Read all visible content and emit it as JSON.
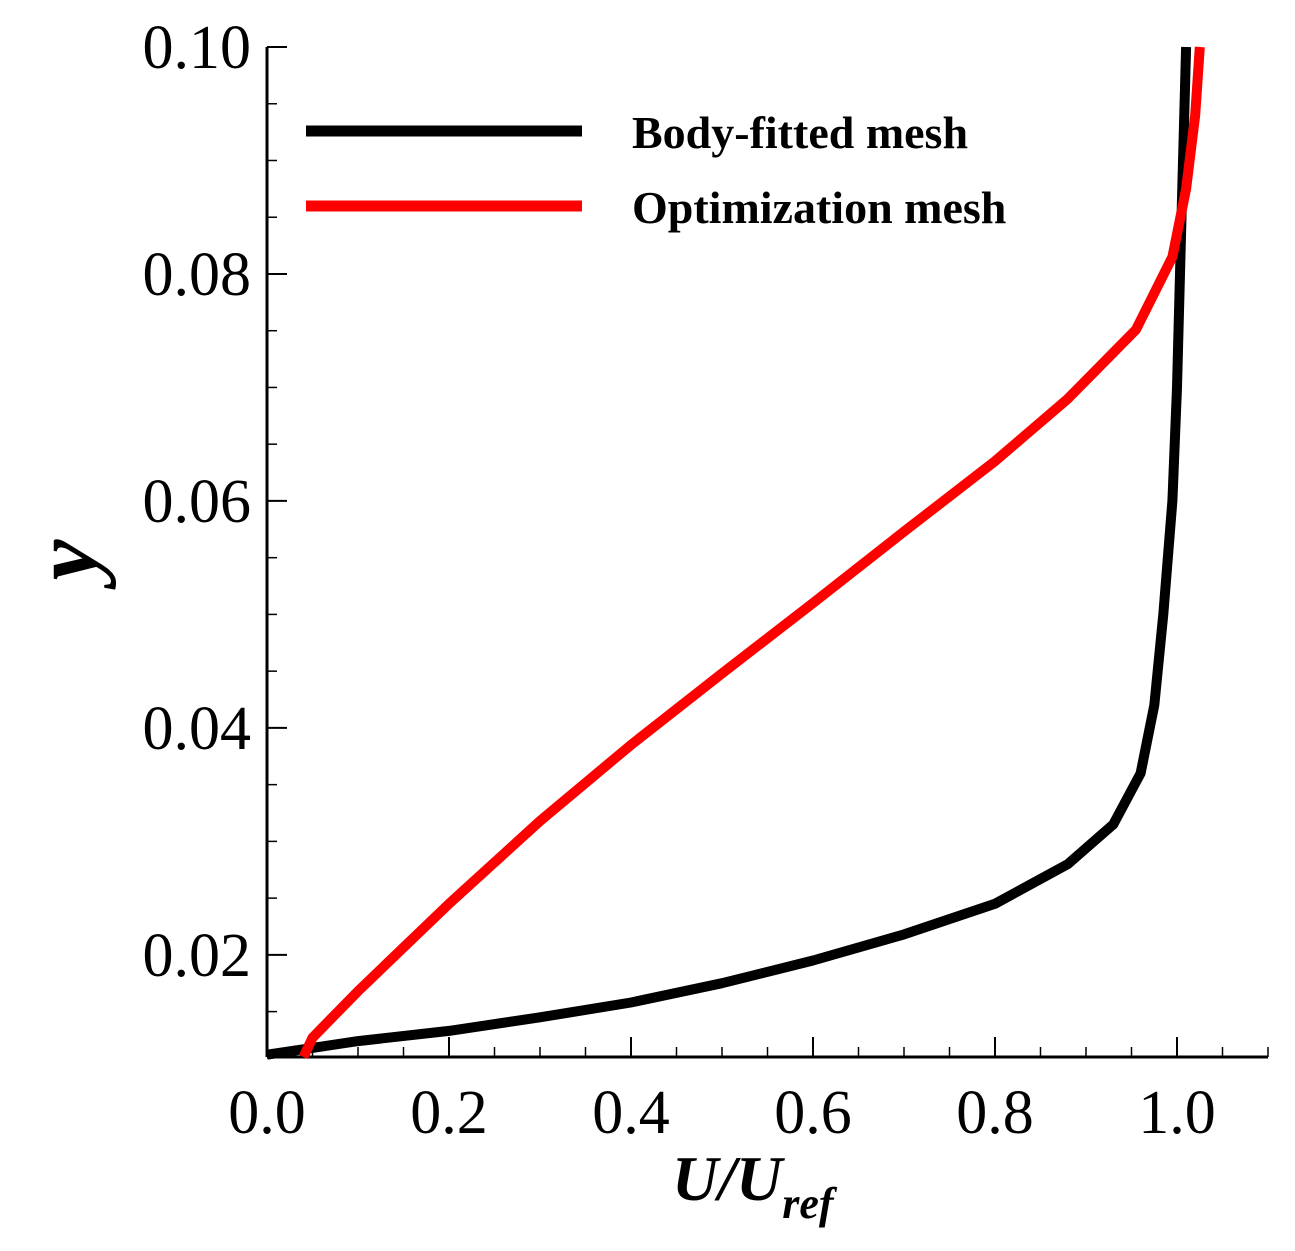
{
  "chart_data": {
    "type": "line",
    "xlabel": {
      "main": "U/U",
      "sub": "ref"
    },
    "ylabel": "y",
    "xlim": [
      0.0,
      1.1
    ],
    "ylim": [
      0.011,
      0.1
    ],
    "x_ticks": [
      0.0,
      0.2,
      0.4,
      0.6,
      0.8,
      1.0
    ],
    "x_tick_labels": [
      "0.0",
      "0.2",
      "0.4",
      "0.6",
      "0.8",
      "1.0"
    ],
    "x_minor_step": 0.05,
    "y_ticks": [
      0.02,
      0.04,
      0.06,
      0.08,
      0.1
    ],
    "y_tick_labels": [
      "0.02",
      "0.04",
      "0.06",
      "0.08",
      "0.10"
    ],
    "y_minor_step": 0.005,
    "grid": false,
    "legend_position": "top-right",
    "series": [
      {
        "name": "Body-fitted mesh",
        "color": "#000000",
        "x": [
          0.0,
          0.05,
          0.1,
          0.2,
          0.3,
          0.4,
          0.5,
          0.6,
          0.7,
          0.8,
          0.88,
          0.93,
          0.96,
          0.975,
          0.985,
          0.995,
          1.0,
          1.005,
          1.01
        ],
        "y": [
          0.0112,
          0.0118,
          0.0124,
          0.0133,
          0.0145,
          0.0158,
          0.0175,
          0.0195,
          0.0218,
          0.0245,
          0.028,
          0.0315,
          0.036,
          0.042,
          0.05,
          0.06,
          0.07,
          0.085,
          0.1
        ]
      },
      {
        "name": "Optimization mesh",
        "color": "#ff0000",
        "x": [
          0.04,
          0.05,
          0.1,
          0.2,
          0.3,
          0.4,
          0.5,
          0.6,
          0.7,
          0.8,
          0.88,
          0.955,
          0.995,
          1.01,
          1.02,
          1.025
        ],
        "y": [
          0.011,
          0.0127,
          0.0168,
          0.0245,
          0.0318,
          0.0385,
          0.0448,
          0.051,
          0.0573,
          0.0635,
          0.069,
          0.0751,
          0.0815,
          0.0875,
          0.094,
          0.1
        ]
      }
    ]
  }
}
